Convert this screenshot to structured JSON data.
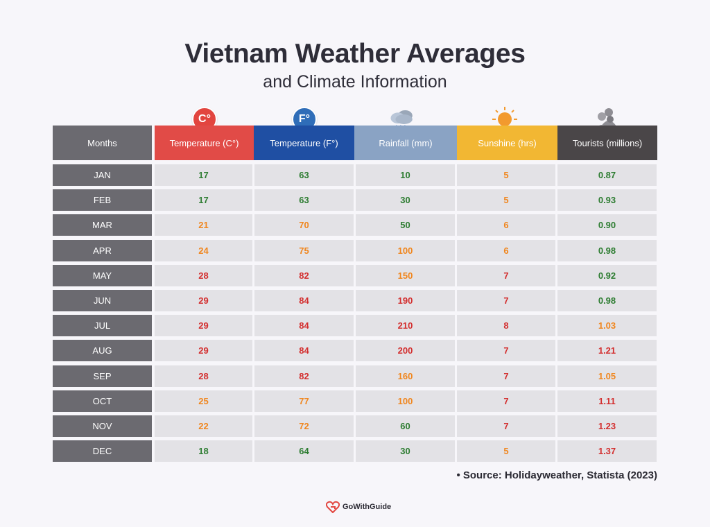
{
  "title": "Vietnam Weather Averages",
  "subtitle": "and Climate Information",
  "icons": {
    "celsius": "C°",
    "fahrenheit": "F°"
  },
  "colors": {
    "celsius_header": "#e14b47",
    "fahrenheit_header": "#1f4fa3",
    "rainfall_header": "#8aa3c4",
    "sunshine_header": "#f2b733",
    "tourists_header": "#4a4648",
    "months_header": "#6b6a70",
    "green": "#2e7d32",
    "orange": "#f0861e",
    "red": "#d32f2f"
  },
  "chart_data": {
    "type": "table",
    "columns": [
      "Months",
      "Temperature (C°)",
      "Temperature (F°)",
      "Rainfall (mm)",
      "Sunshine (hrs)",
      "Tourists (millions)"
    ],
    "rows": [
      {
        "month": "JAN",
        "c": "17",
        "f": "63",
        "rain": "10",
        "sun": "5",
        "tour": "0.87",
        "cc": "g",
        "fc": "g",
        "rc": "g",
        "sc": "o",
        "tc": "g"
      },
      {
        "month": "FEB",
        "c": "17",
        "f": "63",
        "rain": "30",
        "sun": "5",
        "tour": "0.93",
        "cc": "g",
        "fc": "g",
        "rc": "g",
        "sc": "o",
        "tc": "g"
      },
      {
        "month": "MAR",
        "c": "21",
        "f": "70",
        "rain": "50",
        "sun": "6",
        "tour": "0.90",
        "cc": "o",
        "fc": "o",
        "rc": "g",
        "sc": "o",
        "tc": "g"
      },
      {
        "month": "APR",
        "c": "24",
        "f": "75",
        "rain": "100",
        "sun": "6",
        "tour": "0.98",
        "cc": "o",
        "fc": "o",
        "rc": "o",
        "sc": "o",
        "tc": "g"
      },
      {
        "month": "MAY",
        "c": "28",
        "f": "82",
        "rain": "150",
        "sun": "7",
        "tour": "0.92",
        "cc": "r",
        "fc": "r",
        "rc": "o",
        "sc": "r",
        "tc": "g"
      },
      {
        "month": "JUN",
        "c": "29",
        "f": "84",
        "rain": "190",
        "sun": "7",
        "tour": "0.98",
        "cc": "r",
        "fc": "r",
        "rc": "r",
        "sc": "r",
        "tc": "g"
      },
      {
        "month": "JUL",
        "c": "29",
        "f": "84",
        "rain": "210",
        "sun": "8",
        "tour": "1.03",
        "cc": "r",
        "fc": "r",
        "rc": "r",
        "sc": "r",
        "tc": "o"
      },
      {
        "month": "AUG",
        "c": "29",
        "f": "84",
        "rain": "200",
        "sun": "7",
        "tour": "1.21",
        "cc": "r",
        "fc": "r",
        "rc": "r",
        "sc": "r",
        "tc": "r"
      },
      {
        "month": "SEP",
        "c": "28",
        "f": "82",
        "rain": "160",
        "sun": "7",
        "tour": "1.05",
        "cc": "r",
        "fc": "r",
        "rc": "o",
        "sc": "r",
        "tc": "o"
      },
      {
        "month": "OCT",
        "c": "25",
        "f": "77",
        "rain": "100",
        "sun": "7",
        "tour": "1.11",
        "cc": "o",
        "fc": "o",
        "rc": "o",
        "sc": "r",
        "tc": "r"
      },
      {
        "month": "NOV",
        "c": "22",
        "f": "72",
        "rain": "60",
        "sun": "7",
        "tour": "1.23",
        "cc": "o",
        "fc": "o",
        "rc": "g",
        "sc": "r",
        "tc": "r"
      },
      {
        "month": "DEC",
        "c": "18",
        "f": "64",
        "rain": "30",
        "sun": "5",
        "tour": "1.37",
        "cc": "g",
        "fc": "g",
        "rc": "g",
        "sc": "o",
        "tc": "r"
      }
    ]
  },
  "source": "Source: Holidayweather, Statista (2023)",
  "brand": "GoWithGuide"
}
